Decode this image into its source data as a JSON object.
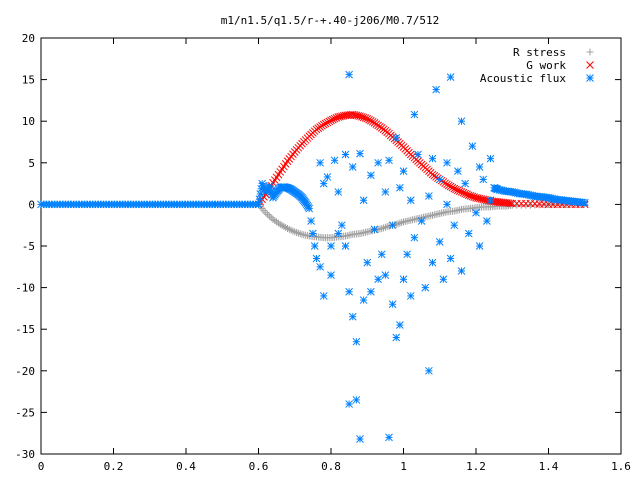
{
  "chart_data": {
    "type": "scatter",
    "title": "m1/n1.5/q1.5/r-+.40-j206/M0.7/512",
    "xlim": [
      0,
      1.6
    ],
    "ylim": [
      -30,
      20
    ],
    "x_ticks": [
      "0",
      "0.2",
      "0.4",
      "0.6",
      "0.8",
      "1",
      "1.2",
      "1.4",
      "1.6"
    ],
    "y_ticks": [
      "20",
      "15",
      "10",
      "5",
      "0",
      "-5",
      "-10",
      "-15",
      "-20",
      "-25",
      "-30"
    ],
    "legend_position": "top-right",
    "grid": false,
    "series": [
      {
        "name": "R stress",
        "marker": "plus",
        "color": "#a0a0a0",
        "points": [
          [
            0.6,
            0.0
          ],
          [
            0.62,
            -1.0
          ],
          [
            0.64,
            -1.8
          ],
          [
            0.66,
            -2.4
          ],
          [
            0.68,
            -2.9
          ],
          [
            0.7,
            -3.3
          ],
          [
            0.72,
            -3.6
          ],
          [
            0.74,
            -3.8
          ],
          [
            0.76,
            -3.9
          ],
          [
            0.78,
            -4.0
          ],
          [
            0.8,
            -4.0
          ],
          [
            0.82,
            -3.9
          ],
          [
            0.84,
            -3.8
          ],
          [
            0.86,
            -3.6
          ],
          [
            0.88,
            -3.5
          ],
          [
            0.9,
            -3.3
          ],
          [
            0.92,
            -3.1
          ],
          [
            0.94,
            -2.9
          ],
          [
            0.96,
            -2.6
          ],
          [
            0.98,
            -2.4
          ],
          [
            1.0,
            -2.1
          ],
          [
            1.02,
            -1.9
          ],
          [
            1.04,
            -1.7
          ],
          [
            1.06,
            -1.5
          ],
          [
            1.08,
            -1.3
          ],
          [
            1.1,
            -1.1
          ],
          [
            1.12,
            -0.9
          ],
          [
            1.14,
            -0.8
          ],
          [
            1.16,
            -0.6
          ],
          [
            1.18,
            -0.5
          ],
          [
            1.2,
            -0.4
          ],
          [
            1.22,
            -0.3
          ],
          [
            1.24,
            -0.3
          ],
          [
            1.26,
            -0.2
          ],
          [
            1.28,
            -0.2
          ],
          [
            1.3,
            -0.1
          ],
          [
            1.35,
            -0.1
          ],
          [
            1.4,
            0.0
          ],
          [
            1.45,
            0.0
          ],
          [
            1.5,
            0.0
          ]
        ]
      },
      {
        "name": "G work",
        "marker": "cross",
        "color": "#ff0000",
        "points": [
          [
            0.6,
            0.0
          ],
          [
            0.62,
            1.2
          ],
          [
            0.64,
            2.6
          ],
          [
            0.66,
            3.9
          ],
          [
            0.68,
            5.2
          ],
          [
            0.7,
            6.3
          ],
          [
            0.72,
            7.3
          ],
          [
            0.74,
            8.2
          ],
          [
            0.76,
            9.0
          ],
          [
            0.78,
            9.6
          ],
          [
            0.8,
            10.1
          ],
          [
            0.82,
            10.5
          ],
          [
            0.84,
            10.7
          ],
          [
            0.86,
            10.8
          ],
          [
            0.88,
            10.6
          ],
          [
            0.9,
            10.3
          ],
          [
            0.92,
            9.8
          ],
          [
            0.94,
            9.2
          ],
          [
            0.96,
            8.5
          ],
          [
            0.98,
            7.7
          ],
          [
            1.0,
            6.9
          ],
          [
            1.02,
            6.0
          ],
          [
            1.04,
            5.2
          ],
          [
            1.06,
            4.4
          ],
          [
            1.08,
            3.6
          ],
          [
            1.1,
            3.0
          ],
          [
            1.12,
            2.4
          ],
          [
            1.14,
            1.9
          ],
          [
            1.16,
            1.5
          ],
          [
            1.18,
            1.1
          ],
          [
            1.2,
            0.8
          ],
          [
            1.22,
            0.6
          ],
          [
            1.24,
            0.4
          ],
          [
            1.26,
            0.3
          ],
          [
            1.28,
            0.2
          ],
          [
            1.3,
            0.1
          ],
          [
            1.35,
            0.1
          ],
          [
            1.4,
            0.0
          ],
          [
            1.45,
            0.0
          ],
          [
            1.5,
            0.0
          ]
        ]
      },
      {
        "name": "Acoustic flux",
        "marker": "star",
        "color": "#0080ff",
        "points": [
          [
            0.0,
            0
          ],
          [
            0.03,
            0
          ],
          [
            0.06,
            0
          ],
          [
            0.09,
            0
          ],
          [
            0.12,
            0
          ],
          [
            0.15,
            0
          ],
          [
            0.18,
            0
          ],
          [
            0.21,
            0
          ],
          [
            0.24,
            0
          ],
          [
            0.27,
            0
          ],
          [
            0.3,
            0
          ],
          [
            0.33,
            0
          ],
          [
            0.36,
            0
          ],
          [
            0.39,
            0
          ],
          [
            0.42,
            0
          ],
          [
            0.45,
            0
          ],
          [
            0.48,
            0
          ],
          [
            0.51,
            0
          ],
          [
            0.54,
            0
          ],
          [
            0.57,
            0
          ],
          [
            0.6,
            0
          ],
          [
            0.61,
            2.5
          ],
          [
            0.62,
            1.5
          ],
          [
            0.63,
            2.2
          ],
          [
            0.64,
            0.8
          ],
          [
            0.65,
            1.5
          ],
          [
            0.66,
            2.0
          ],
          [
            0.67,
            2.1
          ],
          [
            0.68,
            2.0
          ],
          [
            0.69,
            1.8
          ],
          [
            0.7,
            1.5
          ],
          [
            0.71,
            1.2
          ],
          [
            0.72,
            0.8
          ],
          [
            0.73,
            0.2
          ],
          [
            0.74,
            -0.5
          ],
          [
            0.76,
            -6.5
          ],
          [
            0.77,
            -7.5
          ],
          [
            0.77,
            5.0
          ],
          [
            0.78,
            2.5
          ],
          [
            0.78,
            -11.0
          ],
          [
            0.79,
            3.3
          ],
          [
            0.8,
            -5.0
          ],
          [
            0.8,
            -8.5
          ],
          [
            0.81,
            5.3
          ],
          [
            0.82,
            1.5
          ],
          [
            0.82,
            -3.5
          ],
          [
            0.83,
            -2.5
          ],
          [
            0.84,
            6.0
          ],
          [
            0.84,
            -5.0
          ],
          [
            0.85,
            15.6
          ],
          [
            0.85,
            -24.0
          ],
          [
            0.85,
            -10.5
          ],
          [
            0.86,
            -13.5
          ],
          [
            0.86,
            4.5
          ],
          [
            0.87,
            -23.5
          ],
          [
            0.87,
            -16.5
          ],
          [
            0.88,
            -28.2
          ],
          [
            0.88,
            6.1
          ],
          [
            0.89,
            0.5
          ],
          [
            0.89,
            -11.5
          ],
          [
            0.9,
            -7.0
          ],
          [
            0.91,
            -10.5
          ],
          [
            0.91,
            3.5
          ],
          [
            0.92,
            -3.0
          ],
          [
            0.93,
            5.0
          ],
          [
            0.93,
            -9.0
          ],
          [
            0.94,
            -6.0
          ],
          [
            0.95,
            1.5
          ],
          [
            0.95,
            -8.5
          ],
          [
            0.96,
            -28.0
          ],
          [
            0.96,
            5.3
          ],
          [
            0.97,
            -12.0
          ],
          [
            0.97,
            -2.5
          ],
          [
            0.98,
            -16.0
          ],
          [
            0.98,
            8.0
          ],
          [
            0.99,
            2.0
          ],
          [
            0.99,
            -14.5
          ],
          [
            1.0,
            -9.0
          ],
          [
            1.0,
            4.0
          ],
          [
            1.01,
            -6.0
          ],
          [
            1.02,
            -11.0
          ],
          [
            1.02,
            0.5
          ],
          [
            1.03,
            10.8
          ],
          [
            1.03,
            -4.0
          ],
          [
            1.04,
            6.0
          ],
          [
            1.05,
            -2.0
          ],
          [
            1.06,
            -10.0
          ],
          [
            1.07,
            -20.0
          ],
          [
            1.07,
            1.0
          ],
          [
            1.08,
            5.5
          ],
          [
            1.08,
            -7.0
          ],
          [
            1.09,
            13.8
          ],
          [
            1.1,
            -4.5
          ],
          [
            1.1,
            3.0
          ],
          [
            1.11,
            -9.0
          ],
          [
            1.12,
            0.0
          ],
          [
            1.12,
            5.0
          ],
          [
            1.13,
            15.3
          ],
          [
            1.13,
            -6.5
          ],
          [
            1.14,
            -2.5
          ],
          [
            1.15,
            4.0
          ],
          [
            1.16,
            10.0
          ],
          [
            1.16,
            -8.0
          ],
          [
            1.17,
            2.5
          ],
          [
            1.18,
            -3.5
          ],
          [
            1.19,
            7.0
          ],
          [
            1.2,
            -1.0
          ],
          [
            1.21,
            4.5
          ],
          [
            1.21,
            -5.0
          ],
          [
            1.22,
            3.0
          ],
          [
            1.23,
            -2.0
          ],
          [
            1.24,
            5.5
          ],
          [
            1.24,
            0.5
          ],
          [
            1.25,
            2.0
          ],
          [
            1.26,
            1.8
          ],
          [
            1.28,
            1.6
          ],
          [
            1.3,
            1.5
          ],
          [
            1.32,
            1.3
          ],
          [
            1.34,
            1.2
          ],
          [
            1.36,
            1.0
          ],
          [
            1.38,
            0.9
          ],
          [
            1.4,
            0.8
          ],
          [
            1.42,
            0.6
          ],
          [
            1.44,
            0.5
          ],
          [
            1.46,
            0.4
          ],
          [
            1.48,
            0.3
          ],
          [
            1.5,
            0.2
          ]
        ]
      }
    ]
  }
}
